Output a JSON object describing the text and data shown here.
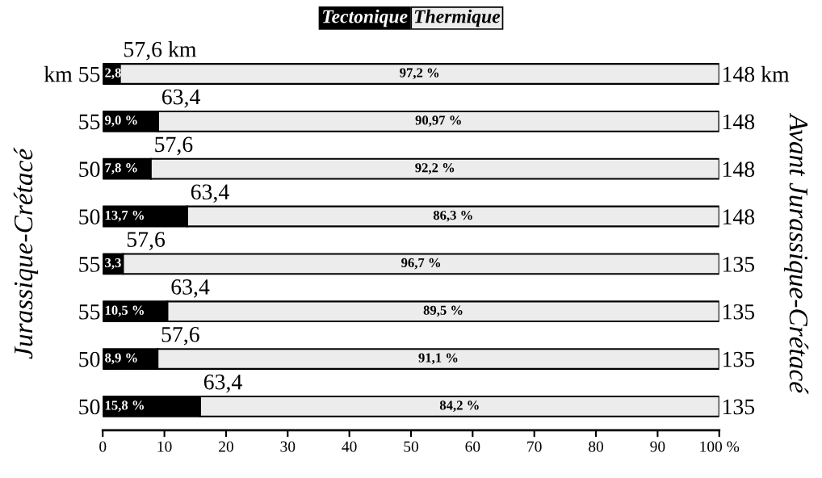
{
  "chart_data": {
    "type": "bar",
    "orientation": "horizontal",
    "stacked": true,
    "categories": [
      "km 55",
      "55",
      "50",
      "50",
      "55",
      "55",
      "50",
      "50"
    ],
    "y2_categories": [
      "148 km",
      "148",
      "148",
      "148",
      "135",
      "135",
      "135",
      "135"
    ],
    "ylabel": "Jurassique-Crétacé",
    "y2label": "Avant Jurassique-Crétacé",
    "series": [
      {
        "name": "Tectonique",
        "color": "#000000",
        "values": [
          2.8,
          9.0,
          7.8,
          13.7,
          3.3,
          10.5,
          8.9,
          15.8
        ],
        "value_labels": [
          "2,8",
          "9,0 %",
          "7,8 %",
          "13,7 %",
          "3,3",
          "10,5 %",
          "8,9 %",
          "15,8 %"
        ]
      },
      {
        "name": "Thermique",
        "color": "#ececec",
        "values": [
          97.2,
          90.97,
          92.2,
          86.3,
          96.7,
          89.5,
          91.1,
          84.2
        ],
        "value_labels": [
          "97,2 %",
          "90,97 %",
          "92,2 %",
          "86,3 %",
          "96,7 %",
          "89,5 %",
          "91,1 %",
          "84,2 %"
        ]
      }
    ],
    "annotations": [
      "57,6 km",
      "63,4",
      "57,6",
      "63,4",
      "57,6",
      "63,4",
      "57,6",
      "63,4"
    ],
    "xlim": [
      0,
      100
    ],
    "xticks": [
      0,
      10,
      20,
      30,
      40,
      50,
      60,
      70,
      80,
      90,
      {
        "value": 100,
        "label": "100 %"
      }
    ],
    "legend": "top",
    "grid": false
  }
}
